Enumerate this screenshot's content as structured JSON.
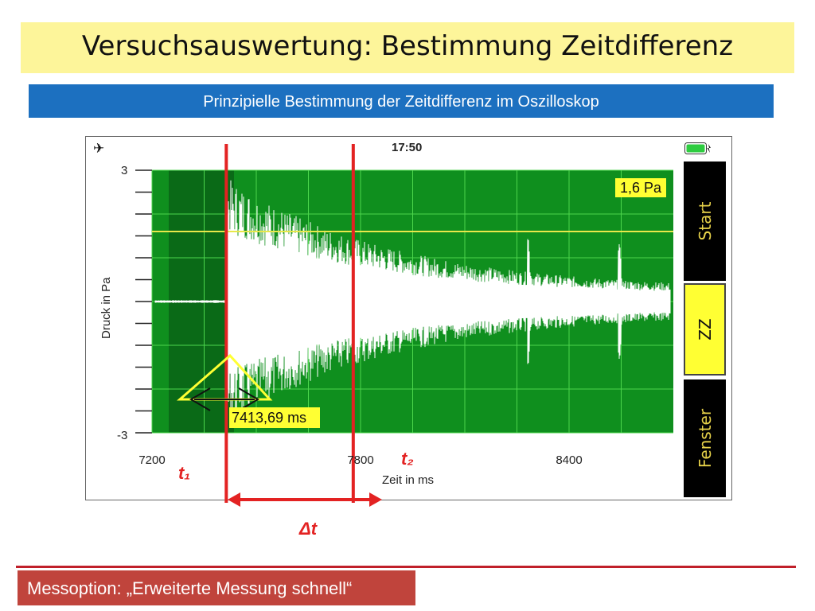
{
  "slide": {
    "title": "Versuchsauswertung: Bestimmung Zeitdifferenz",
    "subtitle": "Prinzipielle Bestimmung der Zeitdifferenz im Oszilloskop",
    "footer": "Messoption: „Erweiterte Messung schnell“"
  },
  "status_bar": {
    "time": "17:50",
    "airplane_icon": "airplane-icon",
    "battery_icon": "battery-icon"
  },
  "side_buttons": {
    "start": "Start",
    "zz": "ZZ",
    "fenster": "Fenster"
  },
  "annotations": {
    "t1": "t₁",
    "t2": "t₂",
    "delta_t": "Δt",
    "threshold_label": "1,6 Pa",
    "cursor_time": "7413,69 ms"
  },
  "chart_data": {
    "type": "line",
    "xlabel": "Zeit in ms",
    "ylabel": "Druck in Pa",
    "xlim": [
      7200,
      8600
    ],
    "ylim": [
      -3,
      3
    ],
    "x_ticks": [
      7200,
      7800,
      8400
    ],
    "y_ticks": [
      3,
      -3
    ],
    "x_tick_labels": [
      "7200",
      "7800",
      "8400"
    ],
    "y_tick_labels": [
      "3",
      "-3"
    ],
    "threshold": 1.6,
    "cursor_x": 7413.69,
    "t1": 7413.69,
    "t2": 7779,
    "grid": true,
    "colors": {
      "plot_bg": "#0f8f1e",
      "pretrigger_bg": "#0a6a17",
      "signal": "#ffffff",
      "threshold_line": "#e8e84a",
      "marker": "#e32222"
    }
  }
}
